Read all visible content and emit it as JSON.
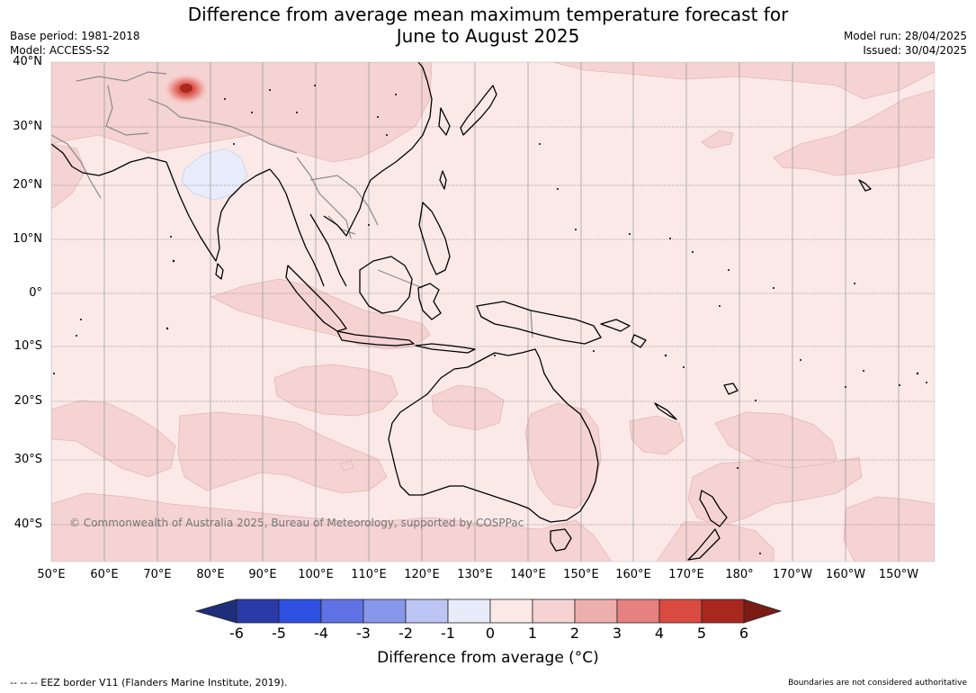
{
  "header": {
    "title_line1": "Difference from average mean maximum temperature forecast for",
    "title_line2": "June to August 2025",
    "base_period": "Base period: 1981-2018",
    "model": "Model: ACCESS-S2",
    "model_run": "Model run: 28/04/2025",
    "issued": "Issued: 30/04/2025"
  },
  "map": {
    "lat_labels": [
      "40°N",
      "30°N",
      "20°N",
      "10°N",
      "0°",
      "10°S",
      "20°S",
      "30°S",
      "40°S"
    ],
    "lon_labels": [
      "50°E",
      "60°E",
      "70°E",
      "80°E",
      "90°E",
      "100°E",
      "110°E",
      "120°E",
      "130°E",
      "140°E",
      "150°E",
      "160°E",
      "170°E",
      "180°",
      "170°W",
      "160°W",
      "150°W"
    ],
    "copyright": "© Commonwealth of Australia 2025, Bureau of Meteorology, supported by COSPPac",
    "base_anomaly_color": "#fbe9e8",
    "anomaly_1_2_color": "#f5d3d2",
    "cool_anomaly_color": "#e9ecfa"
  },
  "colorbar": {
    "ticks": [
      "-6",
      "-5",
      "-4",
      "-3",
      "-2",
      "-1",
      "0",
      "1",
      "2",
      "3",
      "4",
      "5",
      "6"
    ],
    "colors": [
      "#2a3ba8",
      "#2f50e0",
      "#5e72e4",
      "#8797ea",
      "#bcc5f3",
      "#e8ebfa",
      "#fbe9e8",
      "#f5d3d2",
      "#edafae",
      "#e5817e",
      "#d94a41",
      "#a8281e"
    ],
    "under_color": "#1f2e7a",
    "over_color": "#7a1c14",
    "label": "Difference from average (°C)"
  },
  "footer": {
    "eez_note": "--  --  -- EEZ border V11 (Flanders Marine Institute, 2019).",
    "boundaries_note": "Boundaries are not considered authoritative"
  }
}
